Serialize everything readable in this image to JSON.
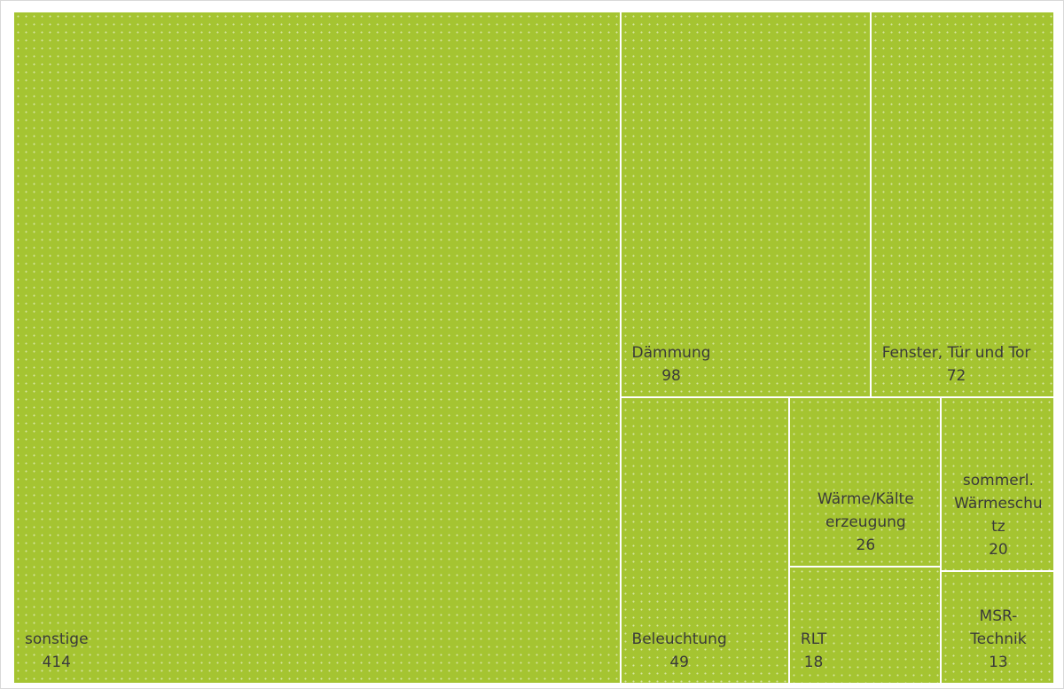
{
  "chart_data": {
    "type": "treemap",
    "color": "#a5c431",
    "categories": [
      "sonstige",
      "Dämmung",
      "Fenster, Tür und Tor",
      "Beleuchtung",
      "Wärme/Kälte erzeugung",
      "sommerl. Wärmeschutz",
      "RLT",
      "MSR-Technik"
    ],
    "values": [
      414,
      98,
      72,
      49,
      26,
      20,
      18,
      13
    ]
  }
}
